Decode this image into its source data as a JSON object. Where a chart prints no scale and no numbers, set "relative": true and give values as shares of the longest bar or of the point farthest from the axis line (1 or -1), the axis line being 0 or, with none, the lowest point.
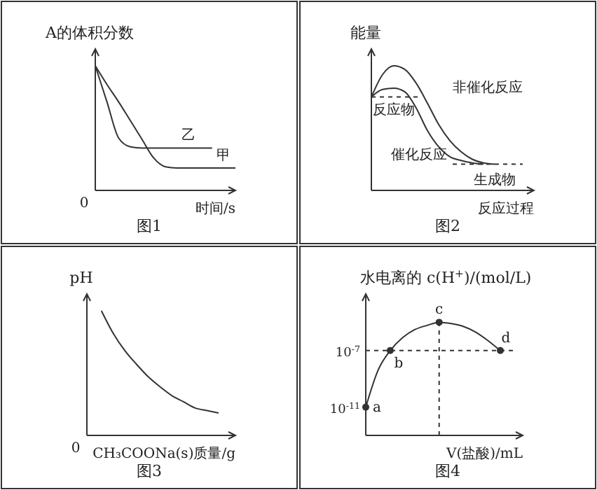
{
  "chart_data": [
    {
      "type": "line",
      "title": "图1",
      "ylabel": "A的体积分数",
      "xlabel": "时间/s",
      "relative": true,
      "annotations": [
        "0"
      ],
      "categories": [
        null,
        null,
        null,
        null,
        null,
        null,
        null,
        null,
        null,
        null,
        null,
        null,
        null
      ],
      "series": [
        {
          "name": "乙",
          "color": "#333333",
          "values": [
            1,
            0.71,
            0.42,
            0.35,
            0.34,
            0.34,
            0.34,
            0.34,
            0.34,
            0.34,
            0.34,
            null,
            null
          ]
        },
        {
          "name": "甲",
          "color": "#333333",
          "values": [
            1,
            0.85,
            0.71,
            0.56,
            0.41,
            0.26,
            0.19,
            0.18,
            0.18,
            0.18,
            0.18,
            0.18,
            0.18
          ]
        }
      ]
    },
    {
      "type": "line",
      "title": "图2",
      "ylabel": "能量",
      "xlabel": "反应过程",
      "relative": true,
      "categories": [
        null,
        null,
        null,
        null,
        null,
        null,
        null,
        null,
        null,
        null,
        null,
        null
      ],
      "series": [
        {
          "name": "非催化反应",
          "color": "#333333",
          "values": [
            0.75,
            0.93,
            1,
            0.97,
            0.86,
            0.7,
            0.53,
            0.4,
            0.31,
            0.25,
            0.22,
            0.21
          ]
        },
        {
          "name": "催化反应",
          "color": "#333333",
          "values": [
            0.75,
            0.81,
            0.82,
            0.79,
            0.66,
            0.48,
            0.35,
            0.27,
            0.24,
            0.22,
            0.21,
            null
          ]
        }
      ],
      "ref_lines": [
        {
          "axis": "y",
          "value": 0.75,
          "label": "反应物",
          "line_style": "dashed"
        },
        {
          "axis": "y",
          "value": 0.21,
          "label": "生成物",
          "line_style": "dashed"
        }
      ]
    },
    {
      "type": "line",
      "title": "图3",
      "ylabel": "pH",
      "xlabel": "CH₃COONa(s)质量/g",
      "relative": true,
      "annotations": [
        "0"
      ],
      "categories": [
        null,
        null,
        null,
        null,
        null,
        null,
        null,
        null,
        null,
        null,
        null,
        null
      ],
      "series": [
        {
          "color": "#333333",
          "values": [
            null,
            1,
            0.82,
            0.68,
            0.57,
            0.47,
            0.39,
            0.32,
            0.27,
            0.22,
            0.2,
            0.18
          ]
        }
      ]
    },
    {
      "type": "line",
      "title": "图4",
      "ylabel": "水电离的 c(H$^{+}$)/(mol/L)",
      "xlabel": "V(盐酸)/mL",
      "log": "y",
      "tick_labels": "y",
      "ylim": [
        1e-13,
        0.001
      ],
      "yticks": [
        {
          "value": 1e-11,
          "label": "10$^{-11}$"
        },
        {
          "value": 1e-07,
          "label": "10$^{-7}$"
        }
      ],
      "categories": [
        null,
        null,
        null,
        null,
        null,
        null,
        null,
        null,
        null,
        null,
        null,
        null
      ],
      "series": [
        {
          "color": "#333333",
          "values": [
            1e-11,
            4e-09,
            1e-07,
            8e-07,
            3e-06,
            6e-06,
            1e-05,
            8e-06,
            5e-06,
            2e-06,
            5e-07,
            1e-07
          ]
        },
        {
          "type": "scatter",
          "color": "#333333",
          "marker": "circle",
          "values": [
            1e-11,
            null,
            1e-07,
            null,
            null,
            null,
            1e-05,
            null,
            null,
            null,
            null,
            1e-07
          ]
        }
      ],
      "ref_lines": [
        {
          "axis": "y",
          "value": 1e-07,
          "line_style": "dashed"
        }
      ],
      "annotations": [
        "a",
        "b",
        "c",
        "d"
      ]
    }
  ]
}
